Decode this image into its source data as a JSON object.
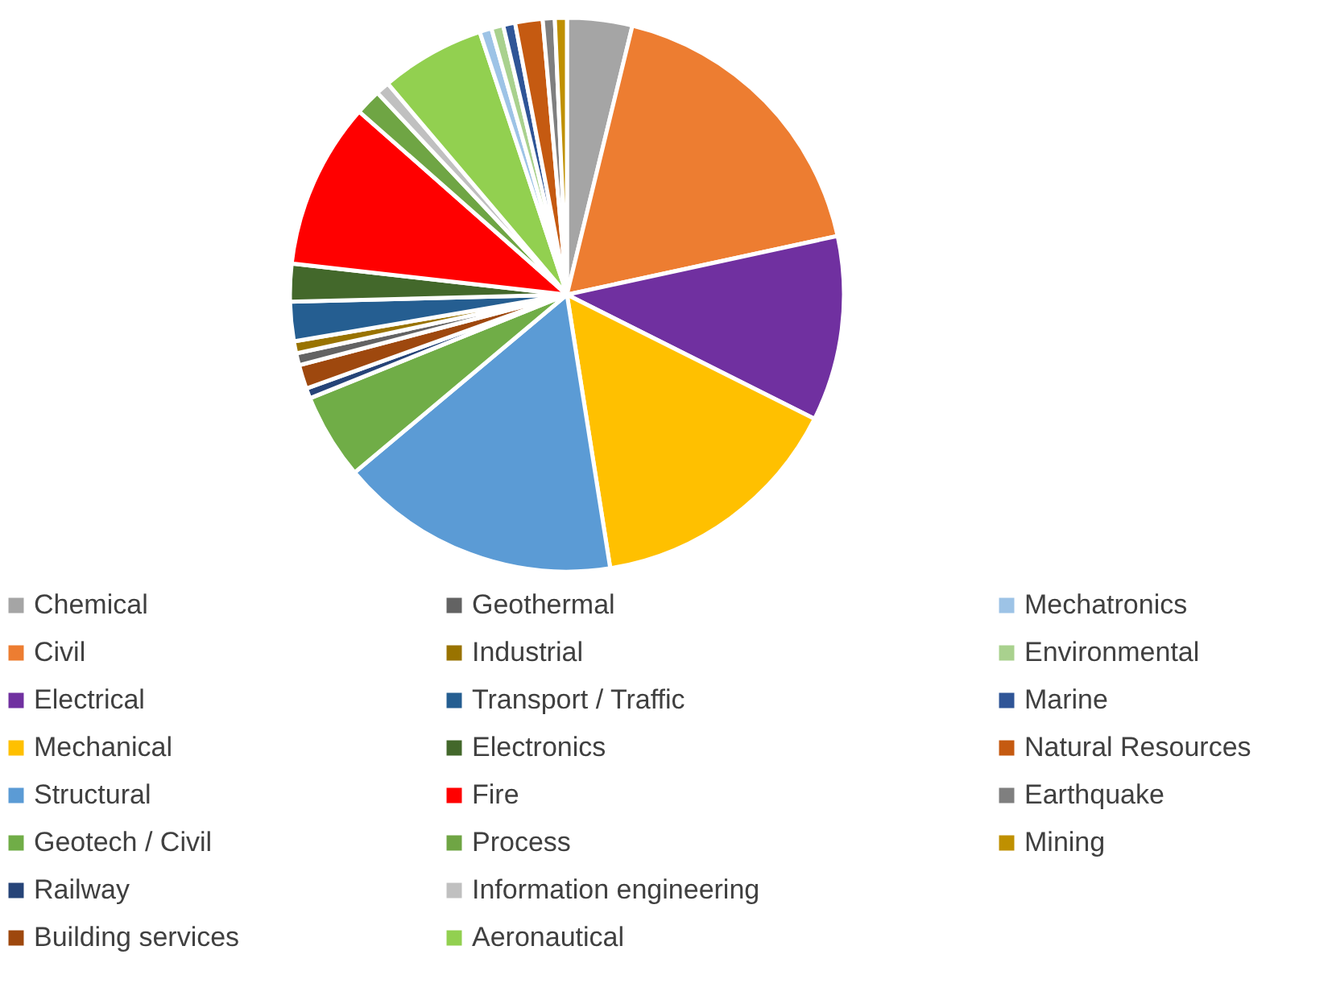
{
  "chart_data": {
    "type": "pie",
    "categories": [
      "Chemical",
      "Civil",
      "Electrical",
      "Mechanical",
      "Structural",
      "Geotech / Civil",
      "Railway",
      "Building services",
      "Geothermal",
      "Industrial",
      "Transport / Traffic",
      "Electronics",
      "Fire",
      "Process",
      "Information engineering",
      "Aeronautical",
      "Mechatronics",
      "Environmental",
      "Marine",
      "Natural Resources",
      "Earthquake",
      "Mining"
    ],
    "values": [
      3.8,
      17.8,
      10.8,
      15.1,
      16.4,
      5.0,
      0.6,
      1.4,
      0.7,
      0.7,
      2.3,
      2.2,
      9.7,
      1.5,
      0.8,
      6.1,
      0.7,
      0.7,
      0.7,
      1.6,
      0.7,
      0.7
    ],
    "colors": [
      "#a5a5a5",
      "#ed7d31",
      "#7030a0",
      "#ffc000",
      "#5b9bd5",
      "#70ad47",
      "#264478",
      "#9e480e",
      "#636363",
      "#997300",
      "#255e91",
      "#43682b",
      "#ff0000",
      "#6fa544",
      "#c0c0c0",
      "#92d050",
      "#9dc3e6",
      "#a9d18e",
      "#2f5597",
      "#c55a11",
      "#7f7f7f",
      "#bf9000"
    ],
    "legend": "bottom"
  }
}
